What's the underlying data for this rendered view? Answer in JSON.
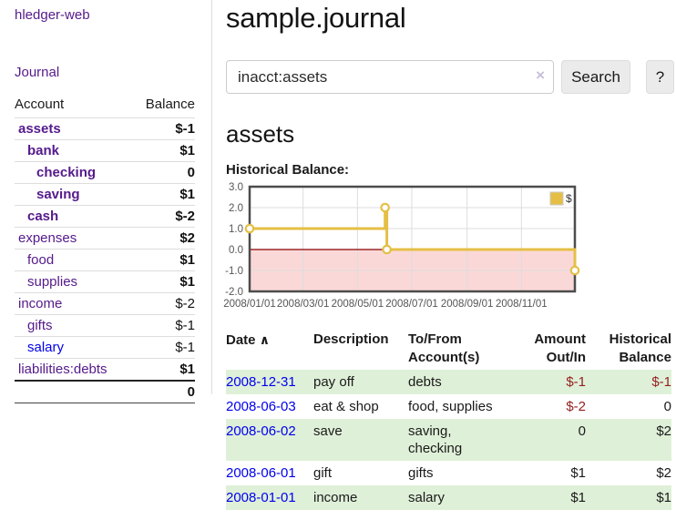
{
  "colors": {
    "purple_link": "#551a8b",
    "blue_link": "#0000ee",
    "negative": "#941f1f",
    "negative_faded": "#bf7e7e",
    "row_stripe_green": "#dff0d8",
    "chart_line_gold": "#e5bf45",
    "chart_negative_fill": "#fbd8d8",
    "chart_zero_line": "#8b0000"
  },
  "sidebar": {
    "brand": "hledger-web",
    "journal_link": "Journal",
    "accounts": {
      "headers": {
        "account": "Account",
        "balance": "Balance"
      },
      "rows": [
        {
          "name": "assets",
          "indent": 1,
          "bold": true,
          "balance": "$-1",
          "balance_class": "neg",
          "balance_bold": true
        },
        {
          "name": "bank",
          "indent": 2,
          "bold": true,
          "balance": "$1",
          "balance_class": "",
          "balance_bold": true
        },
        {
          "name": "checking",
          "indent": 3,
          "bold": true,
          "balance": "0",
          "balance_class": "",
          "balance_bold": true
        },
        {
          "name": "saving",
          "indent": 3,
          "bold": true,
          "balance": "$1",
          "balance_class": "",
          "balance_bold": true
        },
        {
          "name": "cash",
          "indent": 2,
          "bold": true,
          "balance": "$-2",
          "balance_class": "neg",
          "balance_bold": true
        },
        {
          "name": "expenses",
          "indent": 1,
          "bold": false,
          "balance": "$2",
          "balance_class": "",
          "balance_bold": true
        },
        {
          "name": "food",
          "indent": 2,
          "bold": false,
          "balance": "$1",
          "balance_class": "",
          "balance_bold": true
        },
        {
          "name": "supplies",
          "indent": 2,
          "bold": false,
          "balance": "$1",
          "balance_class": "",
          "balance_bold": true
        },
        {
          "name": "income",
          "indent": 1,
          "bold": false,
          "balance": "$-2",
          "balance_class": "faded",
          "balance_bold": false
        },
        {
          "name": "gifts",
          "indent": 2,
          "bold": false,
          "balance": "$-1",
          "balance_class": "faded",
          "balance_bold": false
        },
        {
          "name": "salary",
          "indent": 2,
          "bold": false,
          "link_class": "blue",
          "balance": "$-1",
          "balance_class": "faded",
          "balance_bold": false
        },
        {
          "name": "liabilities:debts",
          "indent": 1,
          "bold": false,
          "balance": "$1",
          "balance_class": "",
          "balance_bold": true
        }
      ],
      "total": "0"
    }
  },
  "main": {
    "title": "sample.journal",
    "search": {
      "value": "inacct:assets",
      "clear_icon": "×",
      "search_button": "Search",
      "help_button": "?"
    },
    "account_heading": "assets",
    "chart_title": "Historical Balance:"
  },
  "chart_data": {
    "type": "line",
    "step": true,
    "title": "Historical Balance",
    "series": [
      {
        "name": "$",
        "color": "#e5bf45",
        "x": [
          "2008-01-01",
          "2008-06-01",
          "2008-06-03",
          "2008-12-31"
        ],
        "values": [
          1,
          2,
          0,
          -1
        ]
      }
    ],
    "x_domain": [
      "2008-01-01",
      "2008-12-31"
    ],
    "x_ticks": [
      {
        "date": "2008-01-01",
        "label": "2008/01/01"
      },
      {
        "date": "2008-03-01",
        "label": "2008/03/01"
      },
      {
        "date": "2008-05-01",
        "label": "2008/05/01"
      },
      {
        "date": "2008-07-01",
        "label": "2008/07/01"
      },
      {
        "date": "2008-09-01",
        "label": "2008/09/01"
      },
      {
        "date": "2008-11-01",
        "label": "2008/11/01"
      }
    ],
    "y_ticks": [
      3.0,
      2.0,
      1.0,
      0.0,
      -1.0,
      -2.0
    ],
    "ylim": [
      -2,
      3
    ],
    "grid": true,
    "legend": [
      {
        "label": "$",
        "color": "#e5bf45"
      }
    ],
    "legend_position": "top-right",
    "negative_region_shaded": true
  },
  "register": {
    "headers": {
      "date": "Date",
      "sort_icon": "∧",
      "description": "Description",
      "accounts": "To/From Account(s)",
      "amount": "Amount Out/In",
      "balance": "Historical Balance"
    },
    "rows": [
      {
        "date": "2008-12-31",
        "description": "pay off",
        "accounts": "debts",
        "amount": "$-1",
        "amount_class": "neg",
        "balance": "$-1",
        "balance_class": "neg"
      },
      {
        "date": "2008-06-03",
        "description": "eat & shop",
        "accounts": "food, supplies",
        "amount": "$-2",
        "amount_class": "neg",
        "balance": "0",
        "balance_class": ""
      },
      {
        "date": "2008-06-02",
        "description": "save",
        "accounts": "saving, checking",
        "amount": "0",
        "amount_class": "",
        "balance": "$2",
        "balance_class": ""
      },
      {
        "date": "2008-06-01",
        "description": "gift",
        "accounts": "gifts",
        "amount": "$1",
        "amount_class": "",
        "balance": "$2",
        "balance_class": ""
      },
      {
        "date": "2008-01-01",
        "description": "income",
        "accounts": "salary",
        "amount": "$1",
        "amount_class": "",
        "balance": "$1",
        "balance_class": ""
      }
    ]
  }
}
